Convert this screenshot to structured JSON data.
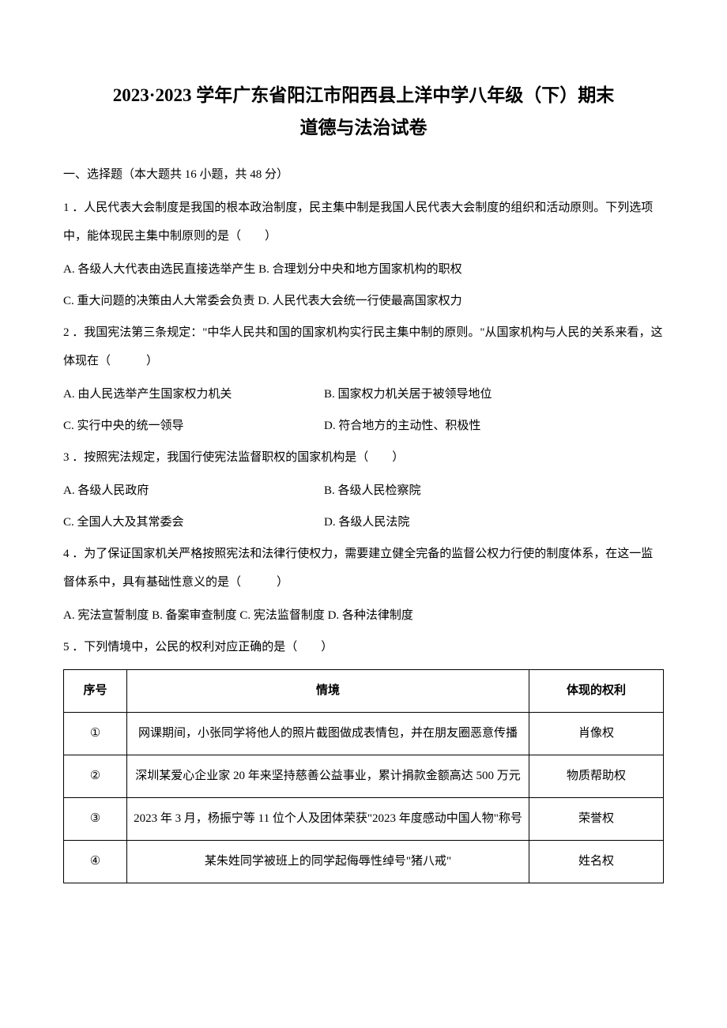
{
  "title_line1": "2023·2023 学年广东省阳江市阳西县上洋中学八年级（下）期末",
  "title_line2": "道德与法治试卷",
  "section_heading": "一、选择题（本大题共 16 小题，共 48 分）",
  "q1": {
    "text": "1 ．人民代表大会制度是我国的根本政治制度，民主集中制是我国人民代表大会制度的组织和活动原则。下列选项中，能体现民主集中制原则的是（　　）",
    "optAB": "A. 各级人大代表由选民直接选举产生 B. 合理划分中央和地方国家机构的职权",
    "optCD": "C. 重大问题的决策由人大常委会负责 D. 人民代表大会统一行使最高国家权力"
  },
  "q2": {
    "text": "2 ．我国宪法第三条规定：\"中华人民共和国的国家机构实行民主集中制的原则。\"从国家机构与人民的关系来看，这体现在（　　　）",
    "optA": "A. 由人民选举产生国家权力机关",
    "optB": "B. 国家权力机关居于被领导地位",
    "optC": "C. 实行中央的统一领导",
    "optD": "D. 符合地方的主动性、积极性"
  },
  "q3": {
    "text": "3 ．按照宪法规定，我国行使宪法监督职权的国家机构是（　　）",
    "optA": "A. 各级人民政府",
    "optB": "B. 各级人民检察院",
    "optC": "C. 全国人大及其常委会",
    "optD": "D. 各级人民法院"
  },
  "q4": {
    "text": "4 ．为了保证国家机关严格按照宪法和法律行使权力，需要建立健全完备的监督公权力行使的制度体系，在这一监督体系中，具有基础性意义的是（　　　）",
    "optABCD": "A. 宪法宣誓制度 B. 备案审查制度 C. 宪法监督制度 D. 各种法律制度"
  },
  "q5": {
    "text": "5 ．下列情境中，公民的权利对应正确的是（　　）"
  },
  "table": {
    "headers": [
      "序号",
      "情境",
      "体现的权利"
    ],
    "rows": [
      {
        "seq": "①",
        "context": "网课期间，小张同学将他人的照片截图做成表情包，并在朋友圈恶意传播",
        "right": "肖像权"
      },
      {
        "seq": "②",
        "context": "深圳某爱心企业家 20 年来坚持慈善公益事业，累计捐款金额高达 500 万元",
        "right": "物质帮助权"
      },
      {
        "seq": "③",
        "context": "2023 年 3 月，杨振宁等 11 位个人及团体荣获\"2023 年度感动中国人物\"称号",
        "right": "荣誉权"
      },
      {
        "seq": "④",
        "context": "某朱姓同学被班上的同学起侮辱性绰号\"猪八戒\"",
        "right": "姓名权"
      }
    ]
  }
}
